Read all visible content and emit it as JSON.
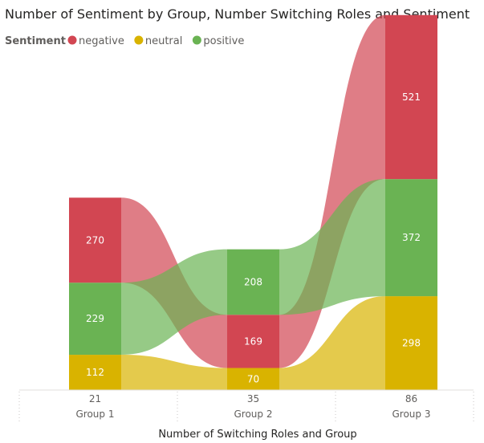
{
  "chart_data": {
    "type": "ribbon",
    "title": "Number of Sentiment by Group, Number Switching Roles and Sentiment",
    "legend": {
      "title": "Sentiment",
      "position": "top-left",
      "items": [
        {
          "name": "negative",
          "color": "#D24652"
        },
        {
          "name": "neutral",
          "color": "#D9B300"
        },
        {
          "name": "positive",
          "color": "#6AB353"
        }
      ]
    },
    "xlabel": "Number of Switching Roles and Group",
    "categories": [
      {
        "value": "21",
        "group": "Group 1"
      },
      {
        "value": "35",
        "group": "Group 2"
      },
      {
        "value": "86",
        "group": "Group 3"
      }
    ],
    "series": [
      {
        "name": "negative",
        "values": [
          270,
          169,
          521
        ]
      },
      {
        "name": "neutral",
        "values": [
          112,
          70,
          298
        ]
      },
      {
        "name": "positive",
        "values": [
          229,
          208,
          372
        ]
      }
    ],
    "stack_order": [
      [
        "neutral",
        "positive",
        "negative"
      ],
      [
        "neutral",
        "negative",
        "positive"
      ],
      [
        "neutral",
        "positive",
        "negative"
      ]
    ]
  }
}
